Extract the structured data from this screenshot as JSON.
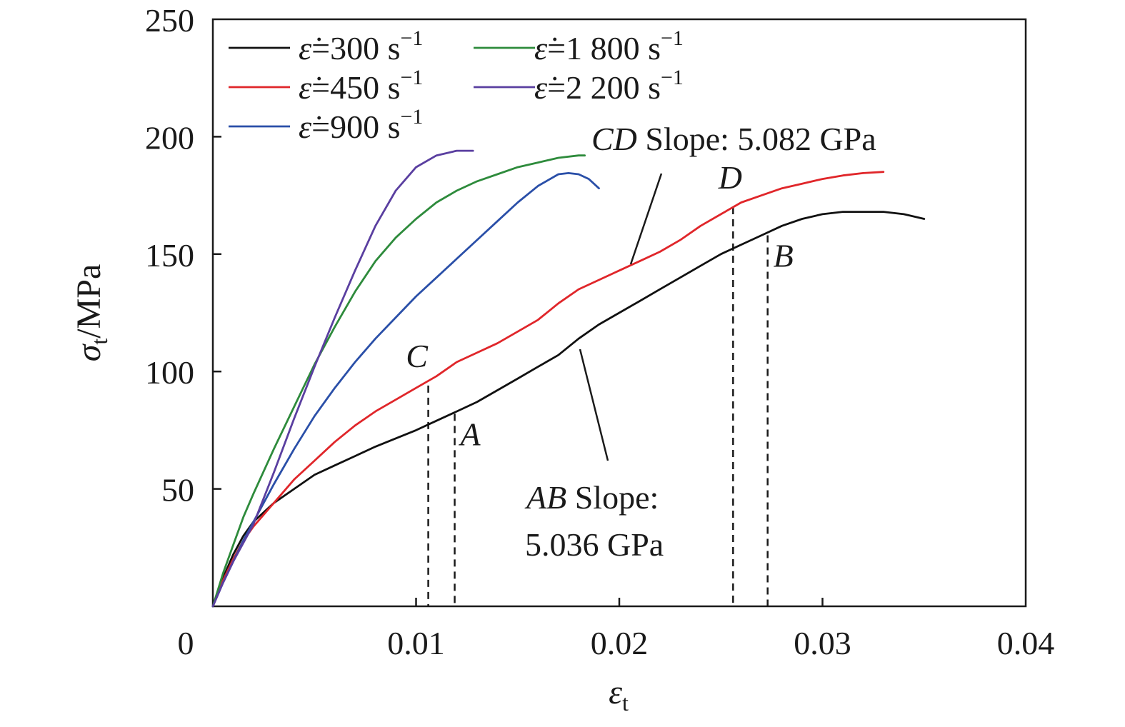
{
  "chart_data": {
    "type": "line",
    "xlabel": "ε",
    "xlabel_sub": "t",
    "ylabel_sym": "σ",
    "ylabel_sub": "t",
    "ylabel_unit": "/MPa",
    "xlim": [
      0,
      0.04
    ],
    "ylim": [
      0,
      250
    ],
    "x_ticks": [
      0,
      0.01,
      0.02,
      0.03,
      0.04
    ],
    "x_tick_labels": [
      "0",
      "0.01",
      "0.02",
      "0.03",
      "0.04"
    ],
    "y_ticks": [
      50,
      100,
      150,
      200,
      250
    ],
    "y_tick_labels": [
      "50",
      "100",
      "150",
      "200",
      "250"
    ],
    "grid": false,
    "legend_position": "top-left",
    "series": [
      {
        "name": "ε̇=300 s−1",
        "rate": "300",
        "color": "#111111",
        "x": [
          0,
          0.0005,
          0.001,
          0.0015,
          0.002,
          0.003,
          0.004,
          0.005,
          0.006,
          0.007,
          0.008,
          0.009,
          0.01,
          0.011,
          0.012,
          0.013,
          0.014,
          0.015,
          0.016,
          0.017,
          0.018,
          0.019,
          0.02,
          0.021,
          0.022,
          0.023,
          0.024,
          0.025,
          0.026,
          0.027,
          0.028,
          0.029,
          0.03,
          0.031,
          0.032,
          0.033,
          0.034,
          0.035
        ],
        "y": [
          0,
          12,
          22,
          30,
          36,
          44,
          50,
          56,
          60,
          64,
          68,
          71.5,
          75,
          79,
          83,
          87,
          92,
          97,
          102,
          107,
          114,
          120,
          125,
          130,
          135,
          140,
          145,
          150,
          154,
          158,
          162,
          165,
          167,
          168,
          168,
          168,
          167,
          165
        ]
      },
      {
        "name": "ε̇=450 s−1",
        "rate": "450",
        "color": "#e0262a",
        "x": [
          0,
          0.0005,
          0.001,
          0.0015,
          0.002,
          0.003,
          0.004,
          0.005,
          0.006,
          0.007,
          0.008,
          0.009,
          0.01,
          0.011,
          0.012,
          0.013,
          0.014,
          0.015,
          0.016,
          0.017,
          0.018,
          0.019,
          0.02,
          0.021,
          0.022,
          0.023,
          0.024,
          0.025,
          0.026,
          0.027,
          0.028,
          0.029,
          0.03,
          0.031,
          0.032,
          0.033
        ],
        "y": [
          0,
          11,
          20,
          28,
          34,
          44,
          54,
          62,
          70,
          77,
          83,
          88,
          93,
          98,
          104,
          108,
          112,
          117,
          122,
          129,
          135,
          139,
          143,
          147,
          151,
          156,
          162,
          167,
          172,
          175,
          178,
          180,
          182,
          183.5,
          184.5,
          185
        ]
      },
      {
        "name": "ε̇=900 s−1",
        "rate": "900",
        "color": "#2a4fa8",
        "x": [
          0,
          0.0005,
          0.001,
          0.0015,
          0.002,
          0.003,
          0.004,
          0.005,
          0.006,
          0.007,
          0.008,
          0.009,
          0.01,
          0.011,
          0.012,
          0.013,
          0.014,
          0.015,
          0.016,
          0.017,
          0.0175,
          0.018,
          0.0185,
          0.019
        ],
        "y": [
          0,
          10,
          19,
          28,
          36,
          52,
          67,
          81,
          93,
          104,
          114,
          123,
          132,
          140,
          148,
          156,
          164,
          172,
          179,
          184,
          184.5,
          184,
          182,
          178
        ]
      },
      {
        "name": "ε̇=1 800 s−1",
        "rate": "1 800",
        "color": "#2e8b3c",
        "x": [
          0,
          0.0005,
          0.001,
          0.0015,
          0.002,
          0.003,
          0.004,
          0.005,
          0.006,
          0.007,
          0.008,
          0.009,
          0.01,
          0.011,
          0.012,
          0.013,
          0.014,
          0.015,
          0.016,
          0.017,
          0.018,
          0.0183
        ],
        "y": [
          0,
          14,
          26,
          38,
          48,
          67,
          85,
          103,
          119,
          134,
          147,
          157,
          165,
          172,
          177,
          181,
          184,
          187,
          189,
          191,
          192,
          192
        ]
      },
      {
        "name": "ε̇=2 200 s−1",
        "rate": "2 200",
        "color": "#5a3fa0",
        "x": [
          0,
          0.0005,
          0.001,
          0.0015,
          0.002,
          0.003,
          0.004,
          0.005,
          0.006,
          0.007,
          0.008,
          0.009,
          0.01,
          0.011,
          0.012,
          0.0128
        ],
        "y": [
          0,
          10,
          19,
          27,
          35,
          57,
          80,
          102,
          123,
          143,
          162,
          177,
          187,
          192,
          194,
          194
        ]
      }
    ],
    "markers": [
      {
        "label": "C",
        "x": 0.0106,
        "y": 94
      },
      {
        "label": "A",
        "x": 0.0119,
        "y": 82
      },
      {
        "label": "D",
        "x": 0.0256,
        "y": 170
      },
      {
        "label": "B",
        "x": 0.0273,
        "y": 158
      }
    ],
    "annotations": {
      "cd_label": "CD",
      "cd_text": "Slope: 5.082 GPa",
      "ab_label": "AB",
      "ab_text1": "Slope:",
      "ab_text2": "5.036 GPa"
    }
  }
}
